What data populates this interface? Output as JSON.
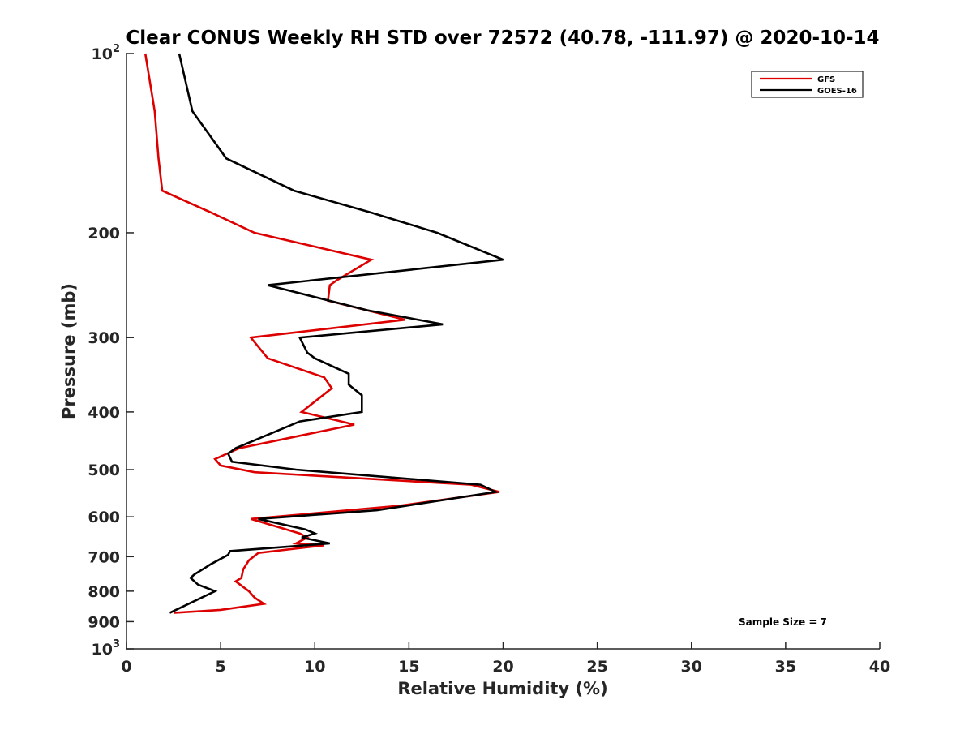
{
  "chart_data": {
    "type": "line",
    "title": "Clear CONUS Weekly RH STD over 72572 (40.78, -111.97) @ 2020-10-14",
    "xlabel": "Relative Humidity (%)",
    "ylabel": "Pressure (mb)",
    "xlim": [
      0,
      40
    ],
    "ylim": [
      100,
      1000
    ],
    "yscale": "log",
    "y_reversed": true,
    "grid": false,
    "x_ticks": [
      {
        "value": 0,
        "label": "0"
      },
      {
        "value": 5,
        "label": "5"
      },
      {
        "value": 10,
        "label": "10"
      },
      {
        "value": 15,
        "label": "15"
      },
      {
        "value": 20,
        "label": "20"
      },
      {
        "value": 25,
        "label": "25"
      },
      {
        "value": 30,
        "label": "30"
      },
      {
        "value": 35,
        "label": "35"
      },
      {
        "value": 40,
        "label": "40"
      }
    ],
    "y_ticks": [
      {
        "value": 100,
        "label": "10",
        "sup": "2"
      },
      {
        "value": 200,
        "label": "200"
      },
      {
        "value": 300,
        "label": "300"
      },
      {
        "value": 400,
        "label": "400"
      },
      {
        "value": 500,
        "label": "500"
      },
      {
        "value": 600,
        "label": "600"
      },
      {
        "value": 700,
        "label": "700"
      },
      {
        "value": 800,
        "label": "800"
      },
      {
        "value": 900,
        "label": "900"
      },
      {
        "value": 1000,
        "label": "10",
        "sup": "3"
      }
    ],
    "legend_position": "top-right",
    "annotation": "Sample Size = 7",
    "series": [
      {
        "name": "GFS",
        "color": "#dd0000",
        "points": [
          [
            1.0,
            100
          ],
          [
            1.5,
            125
          ],
          [
            1.7,
            150
          ],
          [
            1.9,
            170
          ],
          [
            4.5,
            185
          ],
          [
            6.8,
            200
          ],
          [
            13.0,
            222
          ],
          [
            11.2,
            240
          ],
          [
            10.8,
            245
          ],
          [
            10.7,
            260
          ],
          [
            14.8,
            280
          ],
          [
            6.6,
            300
          ],
          [
            7.5,
            325
          ],
          [
            10.5,
            350
          ],
          [
            10.9,
            365
          ],
          [
            9.3,
            400
          ],
          [
            12.1,
            420
          ],
          [
            6.0,
            460
          ],
          [
            4.7,
            480
          ],
          [
            5.0,
            492
          ],
          [
            6.8,
            505
          ],
          [
            18.3,
            530
          ],
          [
            19.8,
            545
          ],
          [
            14.5,
            575
          ],
          [
            6.6,
            605
          ],
          [
            9.2,
            640
          ],
          [
            9.6,
            650
          ],
          [
            9.0,
            665
          ],
          [
            10.5,
            670
          ],
          [
            7.0,
            690
          ],
          [
            6.5,
            710
          ],
          [
            6.2,
            735
          ],
          [
            6.1,
            760
          ],
          [
            5.8,
            770
          ],
          [
            6.5,
            800
          ],
          [
            6.8,
            820
          ],
          [
            7.3,
            840
          ],
          [
            5.0,
            860
          ],
          [
            2.5,
            870
          ]
        ]
      },
      {
        "name": "GOES-16",
        "color": "#000000",
        "points": [
          [
            2.8,
            100
          ],
          [
            3.5,
            125
          ],
          [
            5.3,
            150
          ],
          [
            8.9,
            170
          ],
          [
            13.0,
            185
          ],
          [
            16.5,
            200
          ],
          [
            20.0,
            222
          ],
          [
            7.5,
            245
          ],
          [
            12.8,
            270
          ],
          [
            16.8,
            285
          ],
          [
            9.2,
            300
          ],
          [
            9.6,
            318
          ],
          [
            10.0,
            325
          ],
          [
            11.8,
            345
          ],
          [
            11.8,
            360
          ],
          [
            12.5,
            375
          ],
          [
            12.5,
            400
          ],
          [
            9.2,
            415
          ],
          [
            5.8,
            460
          ],
          [
            5.4,
            470
          ],
          [
            5.6,
            485
          ],
          [
            9.0,
            500
          ],
          [
            18.8,
            530
          ],
          [
            19.6,
            545
          ],
          [
            13.3,
            585
          ],
          [
            7.0,
            605
          ],
          [
            9.5,
            630
          ],
          [
            10.0,
            640
          ],
          [
            9.3,
            650
          ],
          [
            10.8,
            665
          ],
          [
            5.5,
            685
          ],
          [
            5.4,
            695
          ],
          [
            4.5,
            720
          ],
          [
            3.6,
            750
          ],
          [
            3.4,
            760
          ],
          [
            3.8,
            780
          ],
          [
            4.7,
            800
          ],
          [
            2.3,
            870
          ]
        ]
      }
    ]
  }
}
